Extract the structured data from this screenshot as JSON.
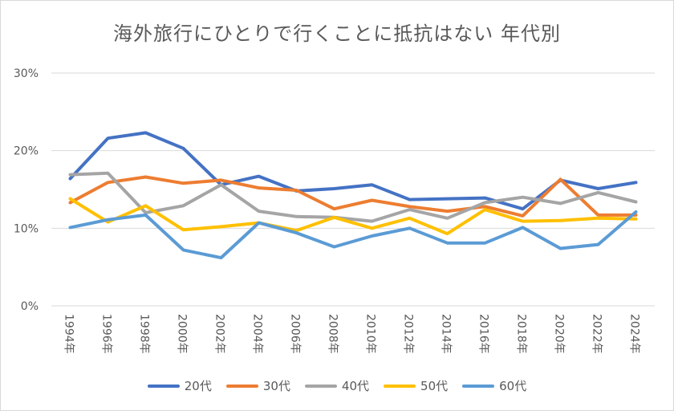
{
  "chart_data": {
    "type": "line",
    "title": "海外旅行にひとりで行くことに抵抗はない 年代別",
    "xlabel": "",
    "ylabel": "",
    "ylim": [
      0,
      30
    ],
    "yticks": [
      0,
      10,
      20,
      30
    ],
    "ytick_labels": [
      "0%",
      "10%",
      "20%",
      "30%"
    ],
    "grid": true,
    "legend_position": "bottom",
    "categories": [
      "1994年",
      "1996年",
      "1998年",
      "2000年",
      "2002年",
      "2004年",
      "2006年",
      "2008年",
      "2010年",
      "2012年",
      "2014年",
      "2016年",
      "2018年",
      "2020年",
      "2022年",
      "2024年"
    ],
    "series": [
      {
        "name": "20代",
        "color": "#4472C4",
        "values": [
          16.4,
          21.6,
          22.3,
          20.3,
          15.6,
          16.7,
          14.8,
          15.1,
          15.6,
          13.7,
          13.8,
          13.9,
          12.5,
          16.2,
          15.1,
          15.9
        ]
      },
      {
        "name": "30代",
        "color": "#ED7D31",
        "values": [
          13.3,
          15.9,
          16.6,
          15.8,
          16.2,
          15.2,
          14.9,
          12.5,
          13.6,
          12.8,
          12.2,
          12.8,
          11.6,
          16.3,
          11.7,
          11.7
        ]
      },
      {
        "name": "40代",
        "color": "#A5A5A5",
        "values": [
          16.9,
          17.1,
          12.0,
          12.9,
          15.6,
          12.2,
          11.5,
          11.4,
          10.9,
          12.4,
          11.3,
          13.3,
          14.0,
          13.2,
          14.6,
          13.4
        ]
      },
      {
        "name": "50代",
        "color": "#FFC000",
        "values": [
          13.8,
          10.8,
          12.9,
          9.8,
          10.2,
          10.7,
          9.7,
          11.4,
          10.0,
          11.3,
          9.3,
          12.4,
          10.9,
          11.0,
          11.3,
          11.2
        ]
      },
      {
        "name": "60代",
        "color": "#5B9BD5",
        "values": [
          10.1,
          11.1,
          11.7,
          7.2,
          6.2,
          10.7,
          9.4,
          7.6,
          9.0,
          10.0,
          8.1,
          8.1,
          10.1,
          7.4,
          7.9,
          12.1
        ]
      }
    ]
  }
}
